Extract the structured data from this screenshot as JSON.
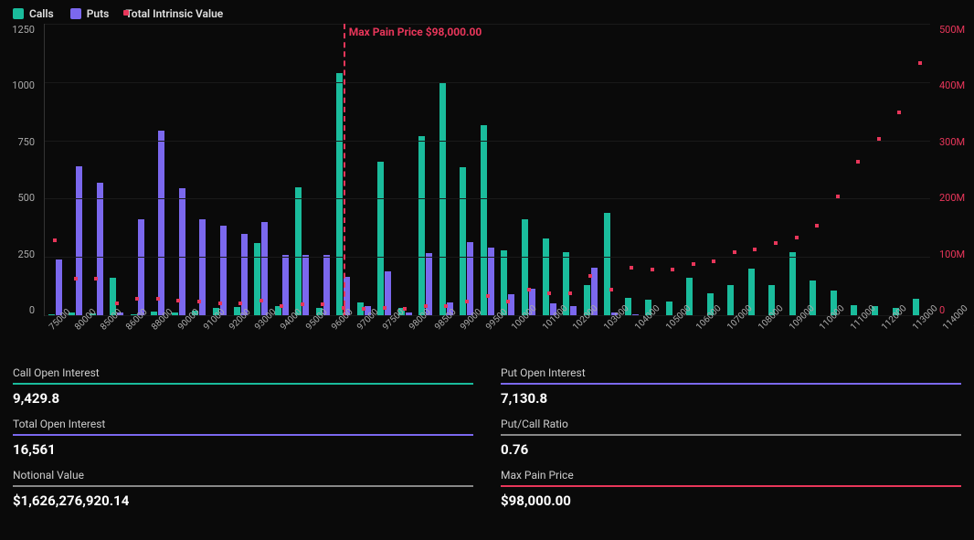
{
  "colors": {
    "calls": "#1abc9c",
    "puts": "#7b68ee",
    "intrinsic": "#e8365a",
    "bg": "#0a0a0a",
    "grid": "#1a1a1a",
    "text": "#e0e0e0",
    "divider_neutral": "#888"
  },
  "legend": {
    "calls": "Calls",
    "puts": "Puts",
    "intrinsic": "Total Intrinsic Value"
  },
  "chart": {
    "type": "bar+scatter",
    "y_left": {
      "min": 0,
      "max": 1250,
      "ticks": [
        "1250",
        "1000",
        "750",
        "500",
        "250",
        "0"
      ]
    },
    "y_right": {
      "min": 0,
      "max": 500,
      "ticks": [
        "500M",
        "400M",
        "300M",
        "200M",
        "100M",
        "0"
      ],
      "unit": "M"
    },
    "maxpain_label": "Max Pain Price $98,000.00",
    "maxpain_strike": "98000",
    "strikes": [
      "75000",
      "80000",
      "85000",
      "86000",
      "88000",
      "90000",
      "91000",
      "92000",
      "93000",
      "94000",
      "95000",
      "96000",
      "97000",
      "97500",
      "98000",
      "98500",
      "99000",
      "99500",
      "100000",
      "101000",
      "102000",
      "103000",
      "104000",
      "105000",
      "106000",
      "107000",
      "108000",
      "109000",
      "110000",
      "111000",
      "112000",
      "113000",
      "114000",
      "115000",
      "116000",
      "118000",
      "120000",
      "125000",
      "130000",
      "135000",
      "140000",
      "145000",
      "150000"
    ],
    "calls": [
      5,
      10,
      8,
      160,
      5,
      15,
      10,
      20,
      30,
      35,
      310,
      40,
      550,
      30,
      1040,
      55,
      660,
      30,
      770,
      995,
      635,
      815,
      280,
      410,
      330,
      270,
      130,
      440,
      75,
      65,
      60,
      160,
      95,
      130,
      200,
      130,
      270,
      150,
      105,
      45,
      40,
      30,
      70
    ],
    "puts": [
      240,
      640,
      570,
      10,
      410,
      790,
      545,
      410,
      385,
      350,
      400,
      260,
      260,
      260,
      165,
      40,
      190,
      10,
      265,
      55,
      315,
      290,
      90,
      115,
      50,
      40,
      205,
      10,
      5,
      0,
      0,
      0,
      0,
      0,
      0,
      0,
      0,
      0,
      0,
      0,
      0,
      0,
      0
    ],
    "intrinsic_m": [
      125,
      60,
      60,
      18,
      25,
      25,
      22,
      20,
      18,
      18,
      22,
      12,
      15,
      15,
      10,
      8,
      10,
      8,
      12,
      12,
      20,
      30,
      20,
      40,
      35,
      35,
      65,
      40,
      78,
      75,
      75,
      85,
      90,
      105,
      110,
      120,
      130,
      150,
      200,
      260,
      300,
      345,
      430
    ]
  },
  "stats": [
    {
      "label": "Call Open Interest",
      "value": "9,429.8",
      "color": "#1abc9c"
    },
    {
      "label": "Put Open Interest",
      "value": "7,130.8",
      "color": "#7b68ee"
    },
    {
      "label": "Total Open Interest",
      "value": "16,561",
      "color": "#7b68ee"
    },
    {
      "label": "Put/Call Ratio",
      "value": "0.76",
      "color": "#888"
    },
    {
      "label": "Notional Value",
      "value": "$1,626,276,920.14",
      "color": "#888"
    },
    {
      "label": "Max Pain Price",
      "value": "$98,000.00",
      "color": "#e8365a"
    }
  ]
}
